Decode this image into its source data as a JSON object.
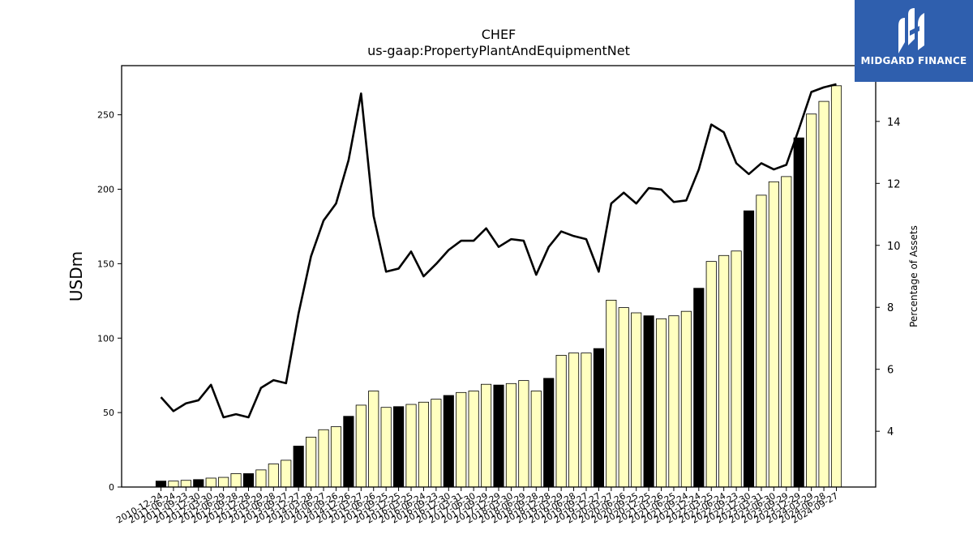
{
  "chart_data": {
    "type": "bar",
    "title": "CHEF",
    "subtitle": "us-gaap:PropertyPlantAndEquipmentNet",
    "ylabel": "USDm",
    "y2label": "Percentage of Assets",
    "ylim": [
      0,
      283
    ],
    "y2lim": [
      2.2,
      15.8
    ],
    "yticks": [
      0,
      50,
      100,
      150,
      200,
      250
    ],
    "y2ticks": [
      4,
      6,
      8,
      10,
      12,
      14
    ],
    "categories": [
      "2010-12-24",
      "2011-06-24",
      "2011-09-23",
      "2011-12-30",
      "2012-03-30",
      "2012-06-29",
      "2012-09-28",
      "2012-12-28",
      "2013-03-29",
      "2013-06-28",
      "2013-09-27",
      "2013-12-27",
      "2014-03-28",
      "2014-06-27",
      "2014-09-26",
      "2014-12-26",
      "2015-03-27",
      "2015-06-26",
      "2015-09-25",
      "2015-12-25",
      "2016-03-25",
      "2016-06-24",
      "2016-09-23",
      "2016-12-30",
      "2017-03-31",
      "2017-06-30",
      "2017-09-29",
      "2017-12-29",
      "2018-03-30",
      "2018-06-29",
      "2018-09-28",
      "2018-12-28",
      "2019-03-29",
      "2019-06-28",
      "2019-09-27",
      "2019-12-27",
      "2020-03-27",
      "2020-06-26",
      "2020-09-25",
      "2020-12-25",
      "2021-03-26",
      "2021-06-25",
      "2021-09-24",
      "2021-12-24",
      "2022-03-25",
      "2022-06-24",
      "2022-09-23",
      "2022-12-30",
      "2023-03-31",
      "2023-06-30",
      "2023-09-29",
      "2023-12-29",
      "2024-03-29",
      "2024-06-28",
      "2024-09-27"
    ],
    "series": [
      {
        "type": "bar",
        "values": [
          4,
          4,
          4.5,
          5,
          6,
          6.5,
          9,
          9,
          11.5,
          15.5,
          18,
          27.5,
          33.5,
          38.5,
          40.5,
          47.5,
          55,
          64.5,
          53.5,
          54,
          55.5,
          57,
          59,
          61.5,
          63.5,
          64.5,
          69,
          68.5,
          69.5,
          71.5,
          64.5,
          73,
          88.5,
          90,
          90,
          93,
          125.5,
          120.5,
          117,
          115,
          113,
          115,
          118,
          133.5,
          151.5,
          155.5,
          158.5,
          185.5,
          196,
          205,
          208.5,
          234.5,
          250.5,
          259,
          269.5
        ],
        "highlight": [
          true,
          false,
          false,
          true,
          false,
          false,
          false,
          true,
          false,
          false,
          false,
          true,
          false,
          false,
          false,
          true,
          false,
          false,
          false,
          true,
          false,
          false,
          false,
          true,
          false,
          false,
          false,
          true,
          false,
          false,
          false,
          true,
          false,
          false,
          false,
          true,
          false,
          false,
          false,
          true,
          false,
          false,
          false,
          true,
          false,
          false,
          false,
          true,
          false,
          false,
          false,
          true,
          false,
          false,
          false
        ],
        "colors": {
          "highlight": "#000000",
          "normal": "#ffffc0",
          "edge": "#000000"
        }
      },
      {
        "type": "line",
        "axis": "right",
        "values": [
          5.1,
          4.65,
          4.9,
          5.0,
          5.5,
          4.45,
          4.55,
          4.45,
          5.4,
          5.65,
          5.55,
          7.8,
          9.65,
          10.8,
          11.35,
          12.75,
          14.9,
          10.95,
          9.15,
          9.25,
          9.8,
          9.0,
          9.4,
          9.85,
          10.15,
          10.15,
          10.55,
          9.95,
          10.2,
          10.15,
          9.05,
          9.95,
          10.45,
          10.3,
          10.2,
          9.15,
          11.35,
          11.7,
          11.35,
          11.85,
          11.8,
          11.4,
          11.45,
          12.45,
          13.9,
          13.65,
          12.65,
          12.3,
          12.65,
          12.45,
          12.6,
          13.75,
          14.95,
          15.1,
          15.2
        ],
        "color": "#000000"
      }
    ],
    "grid": false,
    "legend": "none"
  },
  "logo": {
    "text": "MIDGARD FINANCE",
    "background": "#2f5fae"
  }
}
